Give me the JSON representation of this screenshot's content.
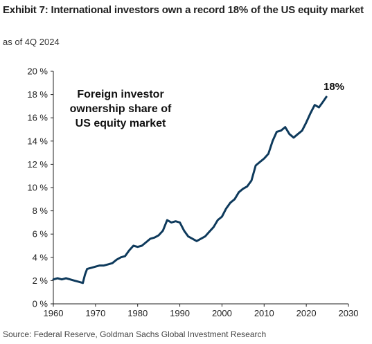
{
  "header": {
    "title": "Exhibit 7: International investors own a record 18% of the US equity market",
    "subtitle": "as of 4Q 2024"
  },
  "footer": {
    "source": "Source: Federal Reserve, Goldman Sachs Global Investment Research"
  },
  "colors": {
    "line": "#0e3a5c",
    "axis": "#222222"
  },
  "chart_data": {
    "type": "line",
    "title": "",
    "xlabel": "",
    "ylabel": "",
    "xlim": [
      1960,
      2030
    ],
    "ylim": [
      0,
      20
    ],
    "x_ticks": [
      "1960",
      "1970",
      "1980",
      "1990",
      "2000",
      "2010",
      "2020",
      "2030"
    ],
    "y_ticks": [
      "0 %",
      "2 %",
      "4 %",
      "6 %",
      "8 %",
      "10 %",
      "12 %",
      "14 %",
      "16 %",
      "18 %",
      "20 %"
    ],
    "grid": false,
    "legend": "none",
    "annotations": [
      {
        "text_lines": [
          "Foreign investor",
          "ownership share of",
          "US equity market"
        ]
      },
      {
        "text": "18%"
      }
    ],
    "series": [
      {
        "values": [
          [
            1960,
            2.1
          ],
          [
            1961,
            2.2
          ],
          [
            1962,
            2.1
          ],
          [
            1963,
            2.2
          ],
          [
            1964,
            2.1
          ],
          [
            1965,
            2.0
          ],
          [
            1966,
            1.9
          ],
          [
            1967,
            1.8
          ],
          [
            1967.5,
            2.5
          ],
          [
            1968,
            3.0
          ],
          [
            1969,
            3.1
          ],
          [
            1970,
            3.2
          ],
          [
            1971,
            3.3
          ],
          [
            1972,
            3.3
          ],
          [
            1973,
            3.4
          ],
          [
            1974,
            3.5
          ],
          [
            1975,
            3.8
          ],
          [
            1976,
            4.0
          ],
          [
            1977,
            4.1
          ],
          [
            1978,
            4.6
          ],
          [
            1979,
            5.0
          ],
          [
            1980,
            4.9
          ],
          [
            1981,
            5.0
          ],
          [
            1982,
            5.3
          ],
          [
            1983,
            5.6
          ],
          [
            1984,
            5.7
          ],
          [
            1985,
            5.9
          ],
          [
            1986,
            6.3
          ],
          [
            1987,
            7.2
          ],
          [
            1988,
            7.0
          ],
          [
            1989,
            7.1
          ],
          [
            1990,
            7.0
          ],
          [
            1991,
            6.3
          ],
          [
            1992,
            5.8
          ],
          [
            1993,
            5.6
          ],
          [
            1994,
            5.4
          ],
          [
            1995,
            5.6
          ],
          [
            1996,
            5.8
          ],
          [
            1997,
            6.2
          ],
          [
            1998,
            6.6
          ],
          [
            1999,
            7.2
          ],
          [
            2000,
            7.5
          ],
          [
            2001,
            8.2
          ],
          [
            2002,
            8.7
          ],
          [
            2003,
            9.0
          ],
          [
            2004,
            9.6
          ],
          [
            2005,
            9.9
          ],
          [
            2006,
            10.1
          ],
          [
            2007,
            10.6
          ],
          [
            2008,
            11.9
          ],
          [
            2009,
            12.2
          ],
          [
            2010,
            12.5
          ],
          [
            2011,
            12.9
          ],
          [
            2012,
            14.0
          ],
          [
            2013,
            14.8
          ],
          [
            2014,
            14.9
          ],
          [
            2015,
            15.2
          ],
          [
            2016,
            14.6
          ],
          [
            2017,
            14.3
          ],
          [
            2018,
            14.6
          ],
          [
            2019,
            14.9
          ],
          [
            2020,
            15.6
          ],
          [
            2021,
            16.4
          ],
          [
            2022,
            17.1
          ],
          [
            2023,
            16.9
          ],
          [
            2024,
            17.4
          ],
          [
            2024.75,
            17.8
          ]
        ]
      }
    ]
  }
}
